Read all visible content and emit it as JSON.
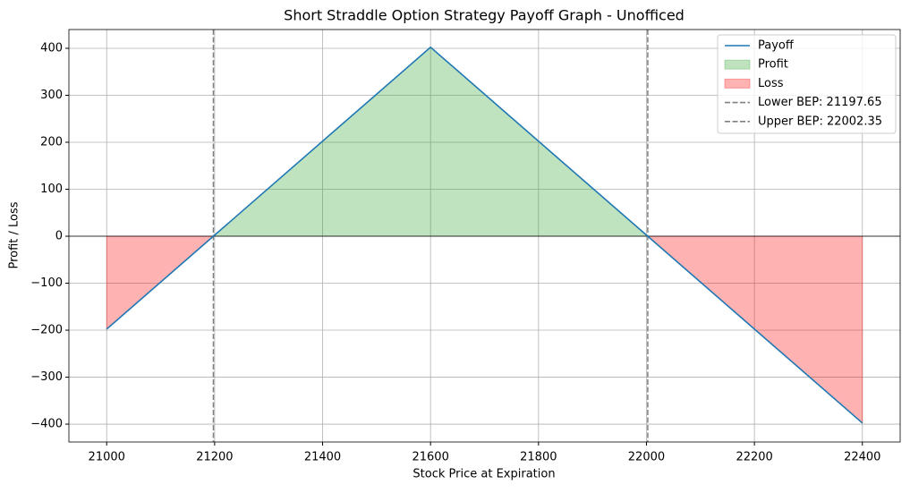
{
  "chart_data": {
    "type": "line",
    "title": "Short Straddle Option Strategy Payoff Graph - Unofficed",
    "xlabel": "Stock Price at Expiration",
    "ylabel": "Profit / Loss",
    "x": [
      21000,
      21197.65,
      21600,
      22002.35,
      22400
    ],
    "series": [
      {
        "name": "Payoff",
        "color": "#1f77b4",
        "values": [
          -197.65,
          0,
          402.35,
          0,
          -397.65
        ]
      }
    ],
    "fills": [
      {
        "name": "Profit",
        "color": "#2ca02c",
        "where": "above"
      },
      {
        "name": "Loss",
        "color": "#ff0000",
        "where": "below"
      }
    ],
    "vlines": [
      {
        "name": "Lower BEP: 21197.65",
        "value": 21197.65,
        "color": "#808080"
      },
      {
        "name": "Upper BEP: 22002.35",
        "value": 22002.35,
        "color": "#808080"
      }
    ],
    "hline": 0,
    "xlim": [
      20930,
      22470
    ],
    "ylim": [
      -438,
      440
    ],
    "xticks": [
      21000,
      21200,
      21400,
      21600,
      21800,
      22000,
      22200,
      22400
    ],
    "yticks": [
      {
        "value": -400,
        "label": "−400"
      },
      {
        "value": -300,
        "label": "−300"
      },
      {
        "value": -200,
        "label": "−200"
      },
      {
        "value": -100,
        "label": "−100"
      },
      0,
      100,
      200,
      300,
      400
    ],
    "grid": true,
    "legend": "upper right"
  }
}
